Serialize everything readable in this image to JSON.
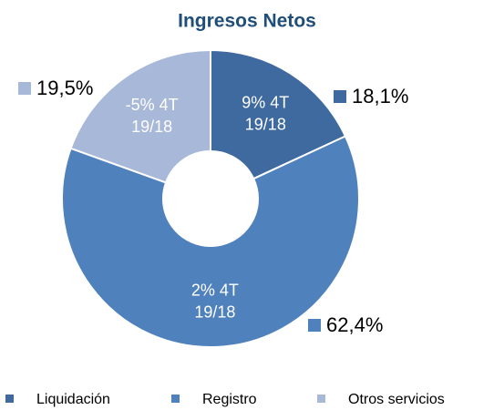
{
  "chart_data": {
    "type": "pie",
    "title": "Ingresos Netos",
    "categories": [
      "Liquidación",
      "Registro",
      "Otros servicios"
    ],
    "values": [
      18.1,
      62.4,
      19.5
    ],
    "value_labels": [
      "18,1%",
      "62,4%",
      "19,5%"
    ],
    "colors": [
      "#3f6aa0",
      "#4f81bd",
      "#a7b8d9"
    ],
    "annotations": [
      [
        "9% 4T",
        "19/18"
      ],
      [
        "2% 4T",
        "19/18"
      ],
      [
        "-5% 4T",
        "19/18"
      ]
    ],
    "legend": "bottom"
  }
}
